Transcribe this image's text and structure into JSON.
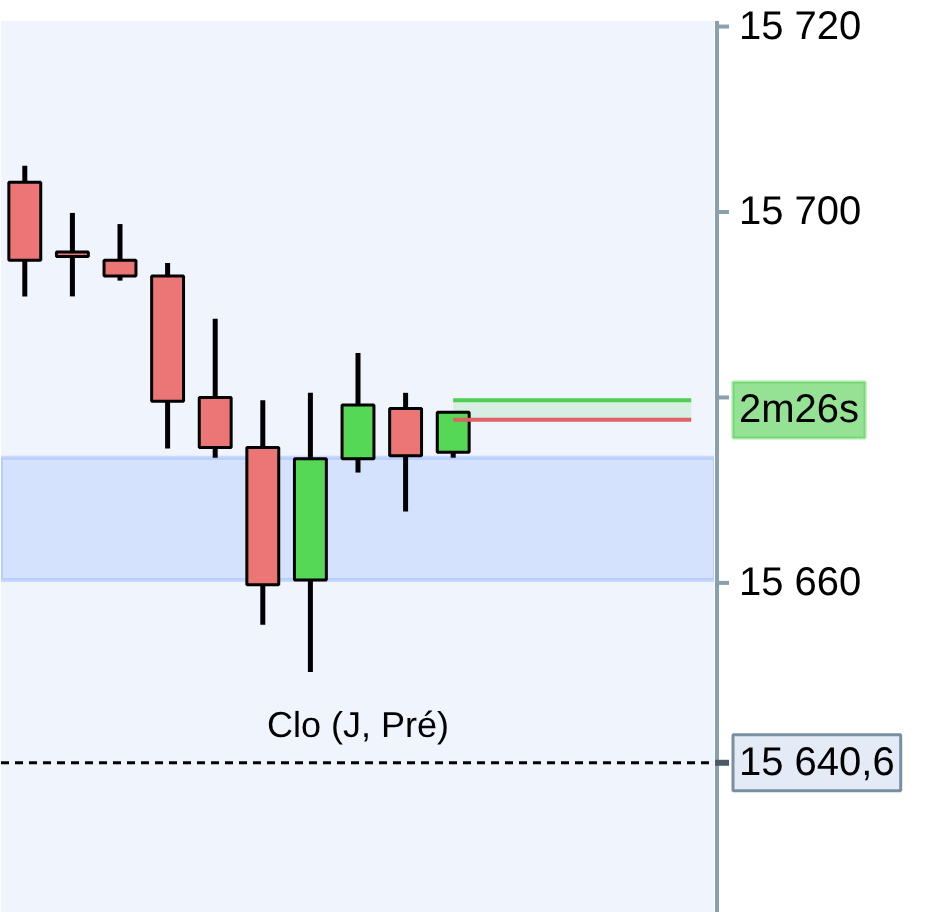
{
  "chart_data": {
    "type": "candlestick",
    "categories": [
      null,
      null,
      null,
      null,
      null,
      null,
      null,
      null,
      null,
      null,
      null,
      null,
      null,
      null,
      null
    ],
    "ohlc": [
      [
        15703.2,
        15705.0,
        15690.9,
        15694.8
      ],
      [
        15695.7,
        15699.9,
        15690.9,
        15695.2
      ],
      [
        15694.8,
        15698.7,
        15692.6,
        15693.1
      ],
      [
        15693.1,
        15694.5,
        15674.5,
        15679.6
      ],
      [
        15680.0,
        15688.5,
        15673.5,
        15674.6
      ],
      [
        15674.6,
        15679.7,
        15655.5,
        15659.8
      ],
      [
        15660.3,
        15680.5,
        15650.4,
        15673.4
      ],
      [
        15673.4,
        15684.8,
        15671.9,
        15679.2
      ],
      [
        15678.8,
        15680.5,
        15667.7,
        15673.7
      ],
      [
        15674.1,
        15678.4,
        15673.5,
        15678.4
      ],
      null,
      null,
      null,
      null,
      null
    ],
    "colors": [
      "#ec7676",
      "#ec7676",
      "#ec7676",
      "#ec7676",
      "#ec7676",
      "#ec7676",
      "#55d855",
      "#55d855",
      "#ec7676",
      "#55d855",
      null,
      null,
      null,
      null,
      null
    ],
    "series": [
      {
        "type": "line",
        "color": "#4fcf4f",
        "values": [
          null,
          null,
          null,
          null,
          null,
          null,
          null,
          null,
          null,
          15679.7,
          15679.7,
          15679.7,
          15679.7,
          15679.7,
          15679.7
        ],
        "lower": [
          null,
          null,
          null,
          null,
          null,
          null,
          null,
          null,
          null,
          15677.6,
          15677.6,
          15677.6,
          15677.6,
          15677.6,
          15677.6
        ],
        "upper": [
          null,
          null,
          null,
          null,
          null,
          null,
          null,
          null,
          null,
          15679.7,
          15679.7,
          15679.7,
          15679.7,
          15679.7,
          15679.7
        ]
      },
      {
        "type": "line",
        "color": "#e06262",
        "values": [
          null,
          null,
          null,
          null,
          null,
          null,
          null,
          null,
          null,
          15677.6,
          15677.6,
          15677.6,
          15677.6,
          15677.6,
          15677.6
        ]
      }
    ],
    "ylim": [
      15624.4,
      15720.6
    ],
    "yticks": [
      {
        "value": 15720,
        "label": "15 720"
      },
      {
        "value": 15700,
        "label": "15 700"
      },
      {
        "value": 15680,
        "label": null
      },
      {
        "value": 15660,
        "label": "15 660"
      },
      {
        "value": 15640.6,
        "label": "15 640,6"
      }
    ],
    "bands": [
      {
        "axis": "y",
        "from": 15660.3,
        "to": 15673.5,
        "color": "#6f9cff"
      }
    ],
    "ref_lines": [
      {
        "axis": "y",
        "value": 15640.6,
        "label": "Clo (J, Pré)",
        "color": "#000000",
        "line_style": "dashed"
      }
    ],
    "annotations": [
      "2m26s"
    ],
    "tick_labels": "y"
  }
}
